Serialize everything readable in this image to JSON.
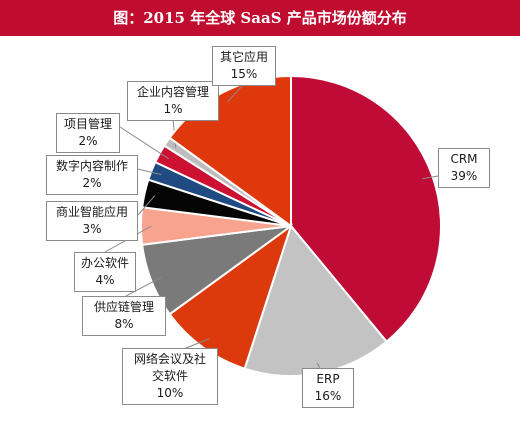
{
  "title": "图：2015 年全球 SaaS 产品市场份额分布",
  "chart_data": {
    "type": "pie",
    "title": "图：2015 年全球 SaaS 产品市场份额分布",
    "legend": "callouts",
    "slices": [
      {
        "label": "CRM",
        "value": 39,
        "pct_label": "39%",
        "color": "#bf0b36"
      },
      {
        "label": "ERP",
        "value": 16,
        "pct_label": "16%",
        "color": "#c3c3c3"
      },
      {
        "label": "网络会议及社交软件",
        "value": 10,
        "pct_label": "10%",
        "color": "#dc3a0c"
      },
      {
        "label": "供应链管理",
        "value": 8,
        "pct_label": "8%",
        "color": "#7a7a7a"
      },
      {
        "label": "办公软件",
        "value": 4,
        "pct_label": "4%",
        "color": "#f7a38e"
      },
      {
        "label": "商业智能应用",
        "value": 3,
        "pct_label": "3%",
        "color": "#050505"
      },
      {
        "label": "数字内容制作",
        "value": 2,
        "pct_label": "2%",
        "color": "#1f4a82"
      },
      {
        "label": "项目管理",
        "value": 2,
        "pct_label": "2%",
        "color": "#cc1133"
      },
      {
        "label": "企业内容管理",
        "value": 1,
        "pct_label": "1%",
        "color": "#bdbdbd"
      },
      {
        "label": "其它应用",
        "value": 15,
        "pct_label": "15%",
        "color": "#e0380d"
      }
    ]
  }
}
